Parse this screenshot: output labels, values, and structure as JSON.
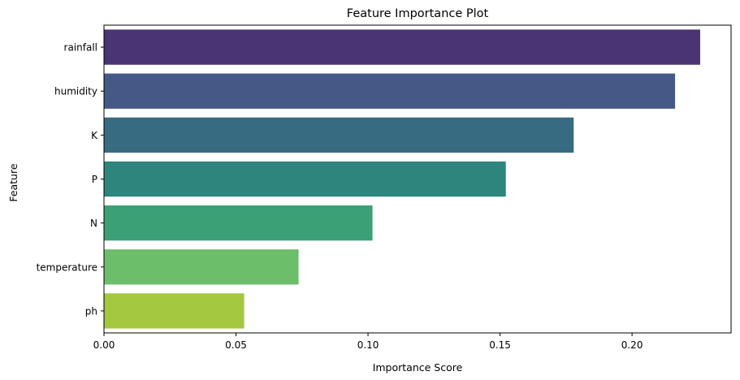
{
  "chart_data": {
    "type": "bar",
    "orientation": "horizontal",
    "title": "Feature Importance Plot",
    "xlabel": "Importance Score",
    "ylabel": "Feature",
    "categories": [
      "rainfall",
      "humidity",
      "K",
      "P",
      "N",
      "temperature",
      "ph"
    ],
    "values": [
      0.2258,
      0.2163,
      0.1779,
      0.1522,
      0.1017,
      0.0737,
      0.0531
    ],
    "colors": [
      "#4b3473",
      "#445986",
      "#376b82",
      "#2e857d",
      "#3ba174",
      "#6cbe6a",
      "#a4c840"
    ],
    "xlim": [
      0,
      0.2375
    ],
    "xticks": [
      0.0,
      0.05,
      0.1,
      0.15,
      0.2
    ],
    "xtick_labels": [
      "0.00",
      "0.05",
      "0.10",
      "0.15",
      "0.20"
    ],
    "grid": false,
    "legend": "none"
  }
}
